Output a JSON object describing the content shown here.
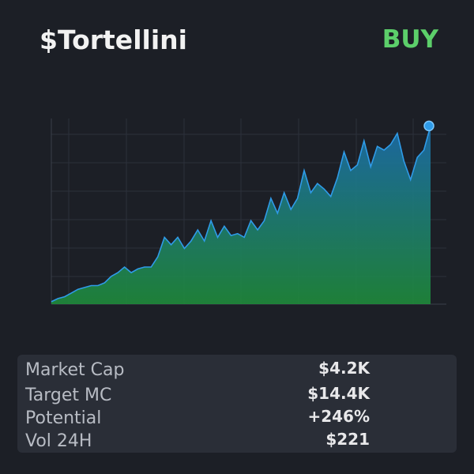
{
  "header": {
    "title": "$Tortellini",
    "action": "BUY"
  },
  "chart_data": {
    "type": "area",
    "color": "#2f9be8",
    "values": [
      1.3,
      3,
      4,
      6,
      8,
      9,
      10,
      10,
      11.5,
      15,
      17,
      20,
      17,
      19,
      20,
      20,
      25.5,
      36,
      32,
      36,
      30,
      34,
      40,
      34,
      45,
      36,
      42,
      37,
      38,
      36,
      45,
      40,
      45,
      57,
      49,
      60,
      51,
      57,
      72,
      60,
      65,
      62,
      58,
      68,
      82,
      72,
      75,
      88,
      74,
      85,
      83,
      86,
      92,
      77,
      67,
      79,
      83,
      96
    ],
    "ylim": [
      0,
      100
    ]
  },
  "table": {
    "rows": [
      [
        "Market Cap",
        "$4.2K"
      ],
      [
        "Target MC",
        "$14.4K"
      ],
      [
        "Potential",
        "+246%"
      ],
      [
        "Vol 24H",
        "$221"
      ]
    ]
  }
}
